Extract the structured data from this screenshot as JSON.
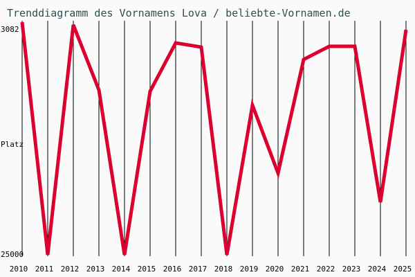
{
  "chart_data": {
    "type": "line",
    "title": "Trenddiagramm des Vornamens Lova / beliebte-Vornamen.de",
    "ylabel": "Platz",
    "xlabel": "",
    "y_reversed": true,
    "ylim": [
      3082,
      25000
    ],
    "ytick_labels": [
      "3082",
      "25000"
    ],
    "x": [
      2010,
      2011,
      2012,
      2013,
      2014,
      2015,
      2016,
      2017,
      2018,
      2019,
      2020,
      2021,
      2022,
      2023,
      2024,
      2025
    ],
    "values": [
      3082,
      25000,
      3340,
      9470,
      25000,
      9600,
      5040,
      5430,
      25000,
      10910,
      17300,
      6600,
      5360,
      5360,
      20040,
      3800
    ],
    "grid": "vertical",
    "colors": {
      "line": "#dc0030",
      "title": "#2f4f4f",
      "grid": "#000000",
      "background": "#fafafa"
    }
  }
}
